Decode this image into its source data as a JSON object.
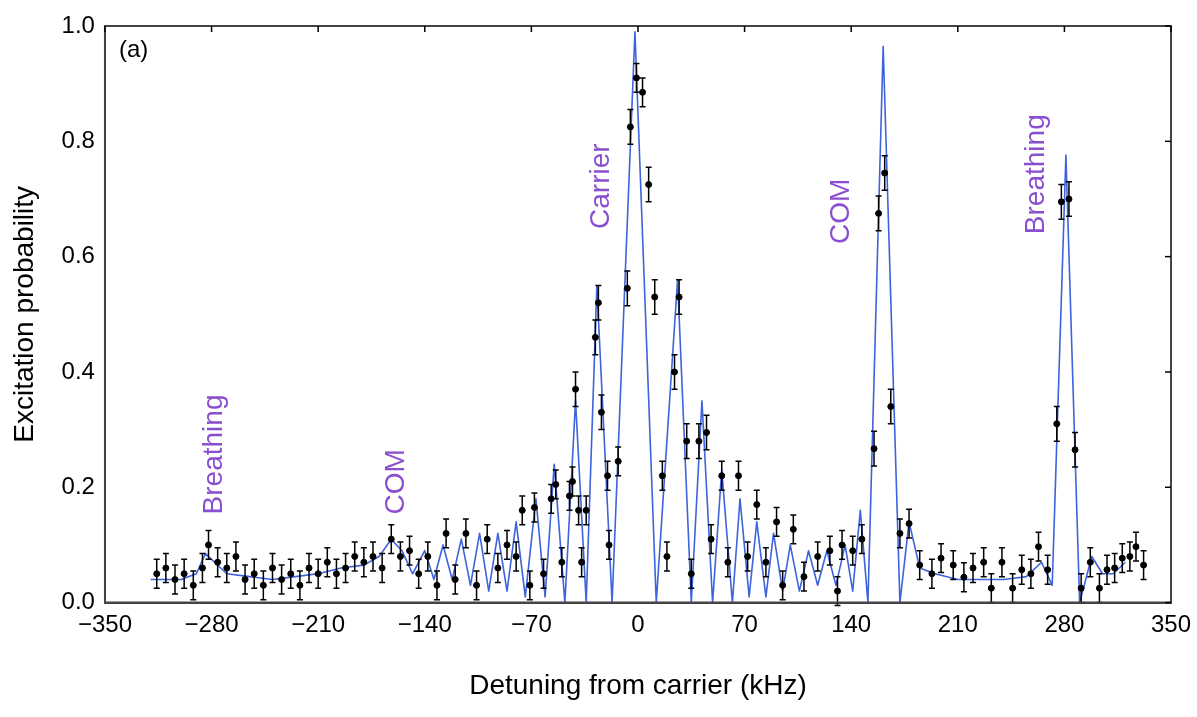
{
  "chart_data": {
    "type": "scatter",
    "xlabel": "Detuning from carrier (kHz)",
    "ylabel": "Excitation probability",
    "xlim": [
      -350,
      350
    ],
    "xticks": [
      {
        "value": -350,
        "label": "−350"
      },
      {
        "value": -280,
        "label": "−280"
      },
      {
        "value": -210,
        "label": "−210"
      },
      {
        "value": -140,
        "label": "−140"
      },
      {
        "value": -70,
        "label": "−70"
      },
      0,
      70,
      140,
      210,
      280,
      350
    ],
    "ylim": [
      0,
      1
    ],
    "yticks": [
      {
        "value": 0,
        "label": "0.0"
      },
      {
        "value": 0.2,
        "label": "0.2"
      },
      {
        "value": 0.4,
        "label": "0.4"
      },
      {
        "value": 0.6,
        "label": "0.6"
      },
      {
        "value": 0.8,
        "label": "0.8"
      },
      {
        "value": 1,
        "label": "1.0"
      }
    ],
    "grid": false,
    "legend": false,
    "annotations": [
      "(a)",
      "Breathing",
      "COM",
      "Carrier",
      "COM",
      "Breathing"
    ],
    "series": [
      {
        "color": "#000000",
        "marker": "circle",
        "x": [
          -316,
          -310,
          -304,
          -298,
          -292,
          -286,
          -282,
          -276,
          -270,
          -264,
          -258,
          -252,
          -246,
          -240,
          -234,
          -228,
          -222,
          -216,
          -210,
          -204,
          -198,
          -192,
          -186,
          -180,
          -174,
          -168,
          -162,
          -156,
          -150,
          -144,
          -138,
          -132,
          -126,
          -120,
          -113,
          -106,
          -99,
          -92,
          -86,
          -80,
          -76,
          -71,
          -68,
          -62,
          -57,
          -54,
          -50,
          -45,
          -43,
          -41,
          -39,
          -37,
          -34,
          -28,
          -26,
          -24,
          -20,
          -19,
          -13,
          -7,
          -5,
          -1,
          3,
          7,
          11,
          16,
          19,
          24,
          27,
          32,
          35,
          40,
          45,
          48,
          55,
          59,
          66,
          72,
          78,
          84,
          91,
          95,
          102,
          109,
          118,
          126,
          131,
          134,
          141,
          147,
          155,
          158,
          162,
          166,
          172,
          178,
          185,
          193,
          199,
          207,
          214,
          220,
          227,
          232,
          239,
          246,
          252,
          258,
          263,
          269,
          275,
          278,
          283,
          287,
          291,
          297,
          303,
          308,
          313,
          318,
          323,
          327,
          332
        ],
        "values": [
          0.05,
          0.06,
          0.04,
          0.05,
          0.03,
          0.06,
          0.1,
          0.07,
          0.06,
          0.08,
          0.04,
          0.05,
          0.03,
          0.06,
          0.04,
          0.05,
          0.03,
          0.06,
          0.05,
          0.07,
          0.05,
          0.06,
          0.08,
          0.07,
          0.08,
          0.06,
          0.11,
          0.08,
          0.09,
          0.05,
          0.08,
          0.03,
          0.12,
          0.04,
          0.12,
          0.03,
          0.11,
          0.06,
          0.1,
          0.08,
          0.16,
          0.03,
          0.165,
          0.05,
          0.18,
          0.205,
          0.07,
          0.185,
          0.21,
          0.37,
          0.16,
          0.07,
          0.16,
          0.46,
          0.52,
          0.33,
          0.22,
          0.1,
          0.245,
          0.545,
          0.825,
          0.91,
          0.885,
          0.725,
          0.53,
          0.22,
          0.08,
          0.4,
          0.53,
          0.28,
          0.05,
          0.28,
          0.295,
          0.11,
          0.22,
          0.07,
          0.22,
          0.08,
          0.17,
          0.07,
          0.14,
          0.03,
          0.127,
          0.045,
          0.08,
          0.09,
          0.02,
          0.1,
          0.09,
          0.11,
          0.267,
          0.675,
          0.745,
          0.34,
          0.12,
          0.137,
          0.065,
          0.05,
          0.077,
          0.065,
          0.044,
          0.06,
          0.07,
          0.025,
          0.07,
          0.025,
          0.057,
          0.05,
          0.097,
          0.057,
          0.31,
          0.695,
          0.7,
          0.265,
          0.025,
          0.07,
          0.025,
          0.057,
          0.06,
          0.077,
          0.08,
          0.097,
          0.065
        ],
        "errors": [
          0.025,
          0.025,
          0.025,
          0.025,
          0.025,
          0.025,
          0.025,
          0.025,
          0.025,
          0.025,
          0.025,
          0.025,
          0.025,
          0.025,
          0.025,
          0.025,
          0.025,
          0.025,
          0.025,
          0.025,
          0.025,
          0.025,
          0.025,
          0.025,
          0.025,
          0.025,
          0.025,
          0.025,
          0.025,
          0.025,
          0.025,
          0.025,
          0.025,
          0.025,
          0.025,
          0.025,
          0.025,
          0.025,
          0.025,
          0.025,
          0.025,
          0.025,
          0.025,
          0.025,
          0.025,
          0.025,
          0.025,
          0.025,
          0.025,
          0.03,
          0.025,
          0.025,
          0.025,
          0.03,
          0.03,
          0.03,
          0.025,
          0.025,
          0.025,
          0.03,
          0.03,
          0.025,
          0.025,
          0.03,
          0.03,
          0.025,
          0.025,
          0.03,
          0.03,
          0.03,
          0.025,
          0.03,
          0.03,
          0.025,
          0.025,
          0.025,
          0.025,
          0.025,
          0.025,
          0.025,
          0.025,
          0.025,
          0.025,
          0.025,
          0.025,
          0.025,
          0.025,
          0.025,
          0.025,
          0.025,
          0.03,
          0.03,
          0.03,
          0.03,
          0.025,
          0.025,
          0.025,
          0.025,
          0.025,
          0.025,
          0.025,
          0.025,
          0.025,
          0.025,
          0.025,
          0.025,
          0.025,
          0.025,
          0.025,
          0.025,
          0.03,
          0.03,
          0.03,
          0.03,
          0.025,
          0.025,
          0.025,
          0.025,
          0.025,
          0.025,
          0.025,
          0.025,
          0.025
        ]
      },
      {
        "type": "line",
        "color": "#3d63dd",
        "marker": "none",
        "x": [
          -320,
          -300,
          -290,
          -284,
          -278,
          -270,
          -255,
          -240,
          -225,
          -210,
          -195,
          -180,
          -170,
          -162,
          -155,
          -148,
          -140,
          -134,
          -128,
          -122,
          -116,
          -110,
          -104,
          -98,
          -92,
          -86,
          -80,
          -74,
          -67,
          -61,
          -55,
          -48,
          -41,
          -34,
          -27,
          -17,
          -2,
          12,
          26,
          35,
          42,
          49,
          55,
          62,
          67,
          73,
          78,
          84,
          89,
          95,
          100,
          106,
          112,
          118,
          124,
          130,
          136,
          141,
          146,
          151,
          161,
          172,
          178,
          185,
          195,
          210,
          225,
          240,
          255,
          265,
          272,
          281,
          290,
          298,
          305,
          312,
          320
        ],
        "values": [
          0.04,
          0.04,
          0.05,
          0.085,
          0.07,
          0.05,
          0.045,
          0.04,
          0.045,
          0.05,
          0.06,
          0.065,
          0.08,
          0.11,
          0.09,
          0.05,
          0.09,
          0.04,
          0.1,
          0.04,
          0.11,
          0.03,
          0.12,
          0.02,
          0.12,
          0.02,
          0.14,
          0.01,
          0.18,
          0.01,
          0.24,
          0,
          0.35,
          0,
          0.55,
          0,
          0.99,
          0,
          0.56,
          0,
          0.35,
          0,
          0.23,
          0,
          0.18,
          0.01,
          0.14,
          0.01,
          0.12,
          0.02,
          0.1,
          0.02,
          0.09,
          0.03,
          0.09,
          0.03,
          0.1,
          0.02,
          0.16,
          0,
          0.965,
          0,
          0.14,
          0.06,
          0.05,
          0.04,
          0.04,
          0.04,
          0.045,
          0.07,
          0.03,
          0.776,
          0,
          0.08,
          0.05,
          0.05,
          0.07
        ]
      }
    ]
  }
}
